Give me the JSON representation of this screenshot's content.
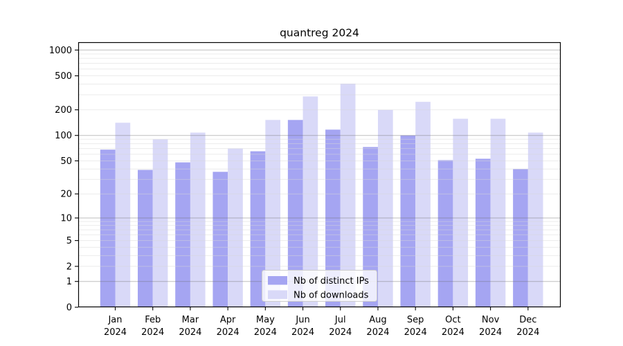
{
  "chart_data": {
    "type": "bar",
    "title": "quantreg 2024",
    "categories": [
      "Jan 2024",
      "Feb 2024",
      "Mar 2024",
      "Apr 2024",
      "May 2024",
      "Jun 2024",
      "Jul 2024",
      "Aug 2024",
      "Sep 2024",
      "Oct 2024",
      "Nov 2024",
      "Dec 2024"
    ],
    "series": [
      {
        "name": "Nb of distinct IPs",
        "color": "#a5a5f2",
        "values": [
          68,
          39,
          48,
          37,
          65,
          152,
          117,
          73,
          100,
          51,
          53,
          40
        ]
      },
      {
        "name": "Nb of downloads",
        "color": "#d9d9f8",
        "values": [
          141,
          90,
          108,
          70,
          152,
          287,
          405,
          199,
          248,
          157,
          157,
          108
        ]
      }
    ],
    "xlabel": "",
    "ylabel": "",
    "yscale": "log1p",
    "ylim": [
      0,
      1234
    ],
    "yticks": [
      0,
      1,
      2,
      5,
      10,
      20,
      50,
      100,
      200,
      500,
      1000
    ],
    "grid": true,
    "legend_position": "lower center",
    "colors": {
      "spine": "#000000",
      "decade_grid": "#6e6e6e",
      "minor_grid": "#d7d7d7",
      "legend_border": "#cccccc",
      "legend_bg": "#ffffff",
      "text": "#000000"
    }
  }
}
